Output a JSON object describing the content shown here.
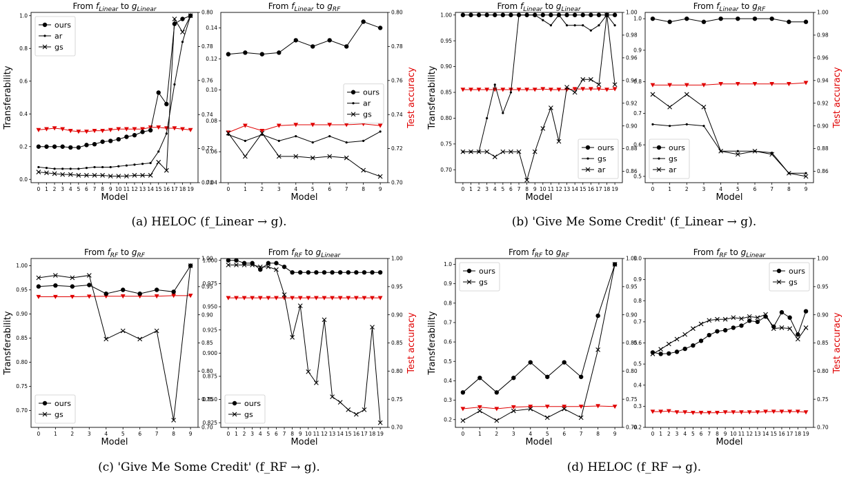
{
  "captions": [
    "(a) HELOC (f_Linear → g).",
    "(b) 'Give Me Some Credit' (f_Linear → g).",
    "(c) 'Give Me Some Credit' (f_RF → g).",
    "(d) HELOC (f_RF → g)."
  ],
  "axis_labels": {
    "x": "Model",
    "y_left": "Transferability",
    "y_right": "Test accuracy"
  },
  "colors": {
    "series": "#000000",
    "accuracy": "#e00000"
  },
  "chart_data": [
    {
      "type": "line",
      "title_pre": "From ",
      "title_f": "f",
      "title_f_sub": "Linear",
      "title_mid": " to ",
      "title_g": "g",
      "title_g_sub": "Linear",
      "x": [
        0,
        1,
        2,
        3,
        4,
        5,
        6,
        7,
        8,
        9,
        10,
        11,
        12,
        13,
        14,
        15,
        16,
        17,
        18,
        19
      ],
      "ylim": [
        -0.02,
        1.02
      ],
      "yticks": [
        "0.0",
        "0.2",
        "0.4",
        "0.6",
        "0.8",
        "1.0"
      ],
      "y2lim": [
        0.7,
        0.8
      ],
      "y2ticks": [
        "0.70",
        "0.72",
        "0.74",
        "0.76",
        "0.78",
        "0.80"
      ],
      "legend_pos": "top-left",
      "series": [
        {
          "name": "ours",
          "marker": "dot",
          "values": [
            0.2,
            0.2,
            0.2,
            0.2,
            0.195,
            0.195,
            0.21,
            0.215,
            0.23,
            0.235,
            0.245,
            0.26,
            0.27,
            0.29,
            0.3,
            0.53,
            0.46,
            0.95,
            0.98,
            1.0
          ]
        },
        {
          "name": "ar",
          "marker": "small",
          "values": [
            0.075,
            0.07,
            0.065,
            0.065,
            0.065,
            0.065,
            0.07,
            0.075,
            0.075,
            0.075,
            0.08,
            0.085,
            0.09,
            0.095,
            0.1,
            0.17,
            0.28,
            0.58,
            0.84,
            1.0
          ]
        },
        {
          "name": "gs",
          "marker": "x",
          "values": [
            0.045,
            0.04,
            0.035,
            0.03,
            0.03,
            0.025,
            0.025,
            0.025,
            0.025,
            0.02,
            0.02,
            0.02,
            0.025,
            0.025,
            0.025,
            0.105,
            0.055,
            0.98,
            0.9,
            1.0
          ]
        }
      ],
      "accuracy": [
        0.731,
        0.7315,
        0.732,
        0.7315,
        0.7305,
        0.73,
        0.73,
        0.7305,
        0.7305,
        0.731,
        0.7315,
        0.7315,
        0.7315,
        0.7315,
        0.7325,
        0.7325,
        0.732,
        0.732,
        0.7315,
        0.731
      ]
    },
    {
      "type": "line",
      "title_pre": "From ",
      "title_f": "f",
      "title_f_sub": "Linear",
      "title_mid": " to ",
      "title_g": "g",
      "title_g_sub": "RF",
      "x": [
        0,
        1,
        2,
        3,
        4,
        5,
        6,
        7,
        8,
        9
      ],
      "ylim": [
        0.04,
        0.15
      ],
      "yticks": [
        "0.04",
        "0.06",
        "0.08",
        "0.10",
        "0.12",
        "0.14"
      ],
      "y2lim": [
        0.7,
        0.8
      ],
      "y2ticks": [
        "0.70",
        "0.72",
        "0.74",
        "0.76",
        "0.78",
        "0.80"
      ],
      "legend_pos": "center-right",
      "series": [
        {
          "name": "ours",
          "marker": "dot",
          "values": [
            0.123,
            0.124,
            0.123,
            0.124,
            0.132,
            0.128,
            0.132,
            0.128,
            0.144,
            0.14
          ]
        },
        {
          "name": "ar",
          "marker": "small",
          "values": [
            0.071,
            0.067,
            0.071,
            0.067,
            0.07,
            0.066,
            0.07,
            0.066,
            0.067,
            0.073
          ]
        },
        {
          "name": "gs",
          "marker": "x",
          "values": [
            0.072,
            0.057,
            0.072,
            0.057,
            0.057,
            0.056,
            0.057,
            0.056,
            0.048,
            0.044
          ]
        }
      ],
      "accuracy": [
        0.7295,
        0.7335,
        0.7305,
        0.7335,
        0.734,
        0.734,
        0.734,
        0.734,
        0.7345,
        0.7335
      ]
    },
    {
      "type": "line",
      "title_pre": "From ",
      "title_f": "f",
      "title_f_sub": "Linear",
      "title_mid": " to ",
      "title_g": "g",
      "title_g_sub": "Linear",
      "x": [
        0,
        1,
        2,
        3,
        4,
        5,
        6,
        7,
        8,
        9,
        10,
        11,
        12,
        13,
        14,
        15,
        16,
        17,
        18,
        19
      ],
      "ylim": [
        0.675,
        1.005
      ],
      "yticks": [
        "0.70",
        "0.75",
        "0.80",
        "0.85",
        "0.90",
        "0.95",
        "1.00"
      ],
      "y2lim": [
        0.85,
        1.0
      ],
      "y2ticks": [
        "0.86",
        "0.88",
        "0.90",
        "0.92",
        "0.94",
        "0.96",
        "0.98",
        "1.00"
      ],
      "legend_pos": "bottom-right",
      "series": [
        {
          "name": "ours",
          "marker": "dot",
          "values": [
            1.0,
            1.0,
            1.0,
            1.0,
            1.0,
            1.0,
            1.0,
            1.0,
            1.0,
            1.0,
            1.0,
            1.0,
            1.0,
            1.0,
            1.0,
            1.0,
            1.0,
            1.0,
            1.0,
            1.0
          ]
        },
        {
          "name": "gs",
          "marker": "small",
          "values": [
            0.735,
            0.735,
            0.735,
            0.8,
            0.865,
            0.81,
            0.85,
            1.0,
            1.0,
            1.0,
            0.99,
            0.98,
            1.0,
            0.98,
            0.98,
            0.98,
            0.97,
            0.98,
            1.0,
            0.98
          ]
        },
        {
          "name": "ar",
          "marker": "x",
          "values": [
            0.735,
            0.735,
            0.735,
            0.735,
            0.725,
            0.735,
            0.735,
            0.735,
            0.68,
            0.735,
            0.78,
            0.82,
            0.755,
            0.86,
            0.85,
            0.875,
            0.875,
            0.865,
            1.0,
            0.865
          ]
        }
      ],
      "accuracy": [
        0.932,
        0.932,
        0.932,
        0.932,
        0.932,
        0.932,
        0.932,
        0.932,
        0.932,
        0.932,
        0.9325,
        0.932,
        0.932,
        0.932,
        0.9325,
        0.9325,
        0.9325,
        0.9325,
        0.932,
        0.9325
      ]
    },
    {
      "type": "line",
      "title_pre": "From ",
      "title_f": "f",
      "title_f_sub": "Linear",
      "title_mid": " to ",
      "title_g": "g",
      "title_g_sub": "RF",
      "x": [
        0,
        1,
        2,
        3,
        4,
        5,
        6,
        7,
        8,
        9
      ],
      "ylim": [
        0.48,
        1.02
      ],
      "yticks": [
        "0.5",
        "0.6",
        "0.7",
        "0.8",
        "0.9",
        "1.0"
      ],
      "y2lim": [
        0.85,
        1.0
      ],
      "y2ticks": [
        "0.86",
        "0.88",
        "0.90",
        "0.92",
        "0.94",
        "0.96",
        "0.98",
        "1.00"
      ],
      "legend_pos": "bottom-left",
      "series": [
        {
          "name": "ours",
          "marker": "dot",
          "values": [
            1.0,
            0.99,
            1.0,
            0.99,
            1.0,
            1.0,
            1.0,
            1.0,
            0.99,
            0.99
          ]
        },
        {
          "name": "gs",
          "marker": "small",
          "values": [
            0.665,
            0.66,
            0.665,
            0.66,
            0.58,
            0.58,
            0.58,
            0.575,
            0.51,
            0.51
          ]
        },
        {
          "name": "ar",
          "marker": "x",
          "values": [
            0.76,
            0.72,
            0.76,
            0.72,
            0.58,
            0.57,
            0.58,
            0.57,
            0.51,
            0.5
          ]
        }
      ],
      "accuracy": [
        0.936,
        0.936,
        0.936,
        0.936,
        0.937,
        0.937,
        0.937,
        0.937,
        0.937,
        0.938
      ]
    },
    {
      "type": "line",
      "title_pre": "From ",
      "title_f": "f",
      "title_f_sub": "RF",
      "title_mid": " to ",
      "title_g": "g",
      "title_g_sub": "RF",
      "x": [
        0,
        1,
        2,
        3,
        4,
        5,
        6,
        7,
        8,
        9
      ],
      "ylim": [
        0.665,
        1.015
      ],
      "yticks": [
        "0.70",
        "0.75",
        "0.80",
        "0.85",
        "0.90",
        "0.95",
        "1.00"
      ],
      "y2lim": [
        0.7,
        1.0
      ],
      "y2ticks": [
        "0.70",
        "0.75",
        "0.80",
        "0.85",
        "0.90",
        "0.95",
        "1.00"
      ],
      "legend_pos": "bottom-left",
      "series": [
        {
          "name": "ours",
          "marker": "dot",
          "values": [
            0.957,
            0.959,
            0.957,
            0.96,
            0.942,
            0.95,
            0.942,
            0.95,
            0.946,
            1.0
          ]
        },
        {
          "name": "gs",
          "marker": "x",
          "values": [
            0.975,
            0.98,
            0.975,
            0.98,
            0.848,
            0.865,
            0.848,
            0.865,
            0.68,
            1.0
          ]
        }
      ],
      "accuracy": [
        0.932,
        0.932,
        0.932,
        0.9325,
        0.933,
        0.933,
        0.933,
        0.933,
        0.934,
        0.934
      ]
    },
    {
      "type": "line",
      "title_pre": "From ",
      "title_f": "f",
      "title_f_sub": "RF",
      "title_mid": " to ",
      "title_g": "g",
      "title_g_sub": "Linear",
      "x": [
        0,
        1,
        2,
        3,
        4,
        5,
        6,
        7,
        8,
        9,
        10,
        11,
        12,
        13,
        14,
        15,
        16,
        17,
        18,
        19
      ],
      "ylim": [
        0.82,
        1.002
      ],
      "yticks": [
        "0.825",
        "0.850",
        "0.875",
        "0.900",
        "0.925",
        "0.950",
        "0.975",
        "1.000"
      ],
      "y2lim": [
        0.7,
        1.0
      ],
      "y2ticks": [
        "0.70",
        "0.75",
        "0.80",
        "0.85",
        "0.90",
        "0.95",
        "1.00"
      ],
      "legend_pos": "bottom-left",
      "series": [
        {
          "name": "ours",
          "marker": "dot",
          "values": [
            1.0,
            1.0,
            0.997,
            0.997,
            0.99,
            0.997,
            0.997,
            0.993,
            0.987,
            0.987,
            0.987,
            0.987,
            0.987,
            0.987,
            0.987,
            0.987,
            0.987,
            0.987,
            0.987,
            0.987
          ]
        },
        {
          "name": "gs",
          "marker": "x",
          "values": [
            0.995,
            0.995,
            0.995,
            0.995,
            0.993,
            0.993,
            0.99,
            0.963,
            0.917,
            0.951,
            0.88,
            0.868,
            0.936,
            0.853,
            0.847,
            0.839,
            0.834,
            0.839,
            0.928,
            0.825
          ]
        }
      ],
      "accuracy": [
        0.93,
        0.93,
        0.93,
        0.93,
        0.93,
        0.93,
        0.93,
        0.93,
        0.93,
        0.93,
        0.93,
        0.93,
        0.93,
        0.93,
        0.93,
        0.93,
        0.93,
        0.93,
        0.93,
        0.93
      ]
    },
    {
      "type": "line",
      "title_pre": "From ",
      "title_f": "f",
      "title_f_sub": "RF",
      "title_mid": " to ",
      "title_g": "g",
      "title_g_sub": "RF",
      "x": [
        0,
        1,
        2,
        3,
        4,
        5,
        6,
        7,
        8,
        9
      ],
      "ylim": [
        0.16,
        1.03
      ],
      "yticks": [
        "0.2",
        "0.3",
        "0.4",
        "0.5",
        "0.6",
        "0.7",
        "0.8",
        "0.9",
        "1.0"
      ],
      "y2lim": [
        0.7,
        1.0
      ],
      "y2ticks": [
        "0.70",
        "0.75",
        "0.80",
        "0.85",
        "0.90",
        "0.95",
        "1.00"
      ],
      "legend_pos": "top-left",
      "series": [
        {
          "name": "ours",
          "marker": "dot",
          "values": [
            0.34,
            0.415,
            0.34,
            0.415,
            0.495,
            0.42,
            0.495,
            0.42,
            0.735,
            1.0
          ]
        },
        {
          "name": "gs",
          "marker": "x",
          "values": [
            0.195,
            0.245,
            0.195,
            0.245,
            0.255,
            0.21,
            0.255,
            0.21,
            0.56,
            1.0
          ]
        }
      ],
      "accuracy": [
        0.733,
        0.736,
        0.733,
        0.736,
        0.737,
        0.737,
        0.737,
        0.737,
        0.738,
        0.737
      ]
    },
    {
      "type": "line",
      "title_pre": "From ",
      "title_f": "f",
      "title_f_sub": "RF",
      "title_mid": " to ",
      "title_g": "g",
      "title_g_sub": "Linear",
      "x": [
        0,
        1,
        2,
        3,
        4,
        5,
        6,
        7,
        8,
        9,
        10,
        11,
        12,
        13,
        14,
        15,
        16,
        17,
        18,
        19
      ],
      "ylim": [
        0.2,
        1.0
      ],
      "yticks": [
        "0.2",
        "0.3",
        "0.4",
        "0.5",
        "0.6",
        "0.7",
        "0.8",
        "0.9",
        "1.0"
      ],
      "y2lim": [
        0.7,
        1.0
      ],
      "y2ticks": [
        "0.70",
        "0.75",
        "0.80",
        "0.85",
        "0.90",
        "0.95",
        "1.00"
      ],
      "legend_pos": "top-right",
      "series": [
        {
          "name": "ours",
          "marker": "dot",
          "values": [
            0.555,
            0.548,
            0.55,
            0.558,
            0.572,
            0.588,
            0.61,
            0.637,
            0.655,
            0.66,
            0.672,
            0.682,
            0.705,
            0.7,
            0.725,
            0.677,
            0.745,
            0.72,
            0.64,
            0.75
          ]
        },
        {
          "name": "gs",
          "marker": "x",
          "values": [
            0.548,
            0.57,
            0.595,
            0.618,
            0.64,
            0.668,
            0.69,
            0.707,
            0.712,
            0.712,
            0.72,
            0.715,
            0.725,
            0.72,
            0.735,
            0.668,
            0.672,
            0.668,
            0.618,
            0.672
          ]
        }
      ],
      "accuracy": [
        0.728,
        0.728,
        0.729,
        0.727,
        0.727,
        0.726,
        0.726,
        0.726,
        0.726,
        0.727,
        0.727,
        0.727,
        0.727,
        0.727,
        0.728,
        0.728,
        0.728,
        0.728,
        0.728,
        0.727
      ]
    }
  ]
}
